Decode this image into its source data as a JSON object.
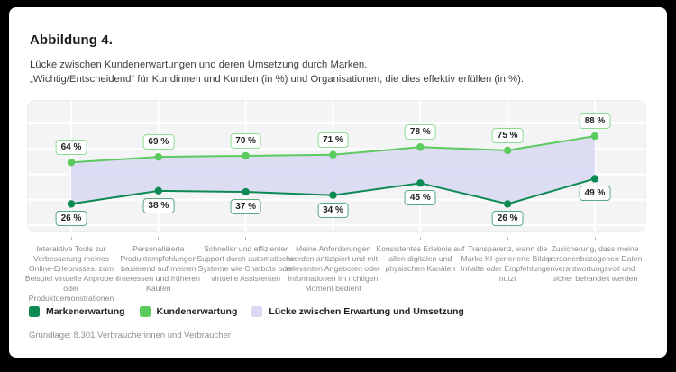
{
  "figure": {
    "title": "Abbildung 4.",
    "subtitle_line1": "Lücke zwischen Kundenerwartungen und deren Umsetzung durch Marken.",
    "subtitle_line2": "„Wichtig/Entscheidend“ für Kundinnen und Kunden (in %) und Organisationen, die dies effektiv erfüllen (in %).",
    "footnote": "Grundlage: 8.301 Verbraucherinnen und Verbraucher"
  },
  "colors": {
    "background": "#000000",
    "card": "#ffffff",
    "plot_background": "#f4f4f6",
    "gridline": "#ffffff",
    "brand_dark_green": "#0d8a53",
    "brand_light_green": "#5bcb5e",
    "gap_lavender": "#d9d9f3",
    "category_text": "#8b8b8b"
  },
  "chart_data": {
    "type": "line",
    "title": "Lücke zwischen Kundenerwartungen und deren Umsetzung durch Marken",
    "value_suffix": " %",
    "ylim": [
      0,
      121
    ],
    "grid": true,
    "legend_position": "bottom",
    "categories": [
      "Interaktive Tools zur Verbesserung meines Online-Erlebnisses, zum Beispiel virtuelle Anproben oder Produktdemonstrationen",
      "Personalisierte Produktempfehlungen basierend auf meinen Interessen und früheren Käufen",
      "Schneller und effizienter Support durch automatische Systeme wie Chatbots oder virtuelle Assistenten",
      "Meine Anforderungen werden antizipiert und mit relevanten Angeboten oder Informationen im richtigen Moment bedient",
      "Konsistentes Erlebnis auf allen digitalen und physischen Kanälen",
      "Transparenz, wann die Marke KI-generierte Bilder, Inhalte oder Empfehlungen nutzt",
      "Zusicherung, dass meine personenbezogenen Daten verantwortungsvoll und sicher behandelt werden"
    ],
    "series": [
      {
        "name": "Kundenerwartung",
        "values": [
          64,
          69,
          70,
          71,
          78,
          75,
          88
        ],
        "color": "#5bcb5e",
        "label_border": "#8edc92",
        "label_position": "above"
      },
      {
        "name": "Markenerwartung",
        "values": [
          26,
          38,
          37,
          34,
          45,
          26,
          49
        ],
        "color": "#0d8a53",
        "label_border": "#5aa985",
        "label_position": "below"
      }
    ],
    "gap_fill": {
      "name": "Lücke zwischen Erwartung und Umsetzung",
      "color": "#d9d9f3"
    }
  },
  "legend": {
    "items": [
      {
        "label": "Markenerwartung",
        "color": "#0d8a53"
      },
      {
        "label": "Kundenerwartung",
        "color": "#5bcb5e"
      },
      {
        "label": "Lücke zwischen Erwartung und Umsetzung",
        "color": "#d9d9f3"
      }
    ]
  }
}
